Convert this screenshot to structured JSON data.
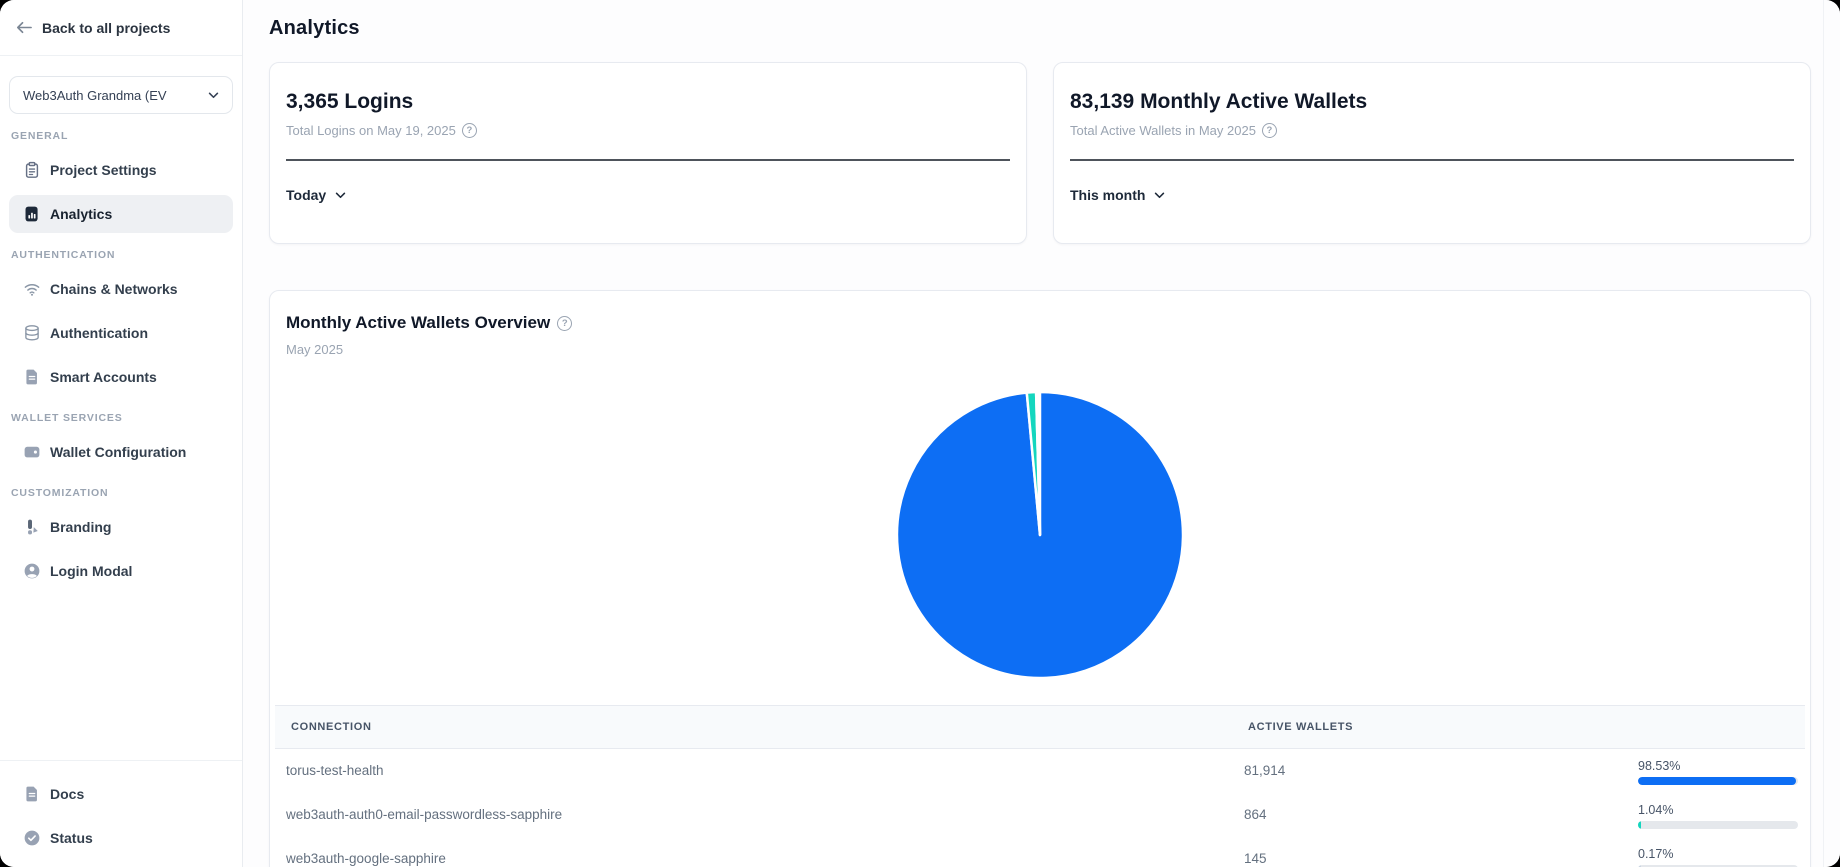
{
  "colors": {
    "accent_blue": "#0D6EF4",
    "accent_teal": "#14D6BE",
    "active_nav_bg": "#EEF0F3"
  },
  "sidebar": {
    "back_link": "Back to all projects",
    "project_selector": {
      "value": "Web3Auth Grandma (EV"
    },
    "sections": [
      {
        "label": "GENERAL",
        "items": [
          {
            "label": "Project Settings",
            "icon": "clipboard-icon",
            "active": false
          },
          {
            "label": "Analytics",
            "icon": "analytics-chart-icon",
            "active": true
          }
        ]
      },
      {
        "label": "AUTHENTICATION",
        "items": [
          {
            "label": "Chains & Networks",
            "icon": "network-icon",
            "active": false
          },
          {
            "label": "Authentication",
            "icon": "database-icon",
            "active": false
          },
          {
            "label": "Smart Accounts",
            "icon": "file-icon",
            "active": false
          }
        ]
      },
      {
        "label": "WALLET SERVICES",
        "items": [
          {
            "label": "Wallet Configuration",
            "icon": "wallet-icon",
            "active": false
          }
        ]
      },
      {
        "label": "CUSTOMIZATION",
        "items": [
          {
            "label": "Branding",
            "icon": "brush-icon",
            "active": false
          },
          {
            "label": "Login Modal",
            "icon": "user-icon",
            "active": false
          }
        ]
      }
    ],
    "footer_items": [
      {
        "label": "Docs",
        "icon": "docs-icon"
      },
      {
        "label": "Status",
        "icon": "status-check-icon"
      }
    ]
  },
  "main": {
    "title": "Analytics",
    "stat_cards": [
      {
        "value_title": "3,365 Logins",
        "subtitle": "Total Logins on May 19, 2025",
        "range_selector": "Today"
      },
      {
        "value_title": "83,139 Monthly Active Wallets",
        "subtitle": "Total Active Wallets in May 2025",
        "range_selector": "This month"
      }
    ],
    "overview_card": {
      "title": "Monthly Active Wallets Overview",
      "subtitle": "May 2025"
    }
  },
  "chart_data": {
    "type": "pie",
    "title": "Monthly Active Wallets Overview",
    "subtitle": "May 2025",
    "total": 83139,
    "legend_position": "none",
    "slices": [
      {
        "label": "torus-test-health",
        "value": 81914,
        "percent": "98.53%",
        "color": "#0D6EF4"
      },
      {
        "label": "web3auth-auth0-email-passwordless-sapphire",
        "value": 864,
        "percent": "1.04%",
        "color": "#14D6BE"
      },
      {
        "label": "web3auth-google-sapphire",
        "value": 145,
        "percent": "0.17%",
        "color": "#FFFFFF"
      }
    ],
    "table": {
      "columns": [
        "CONNECTION",
        "ACTIVE WALLETS",
        ""
      ],
      "rows": [
        {
          "connection": "torus-test-health",
          "active_wallets": "81,914",
          "percent": "98.53%",
          "percent_value": 98.53,
          "bar_color": "#0D6EF4"
        },
        {
          "connection": "web3auth-auth0-email-passwordless-sapphire",
          "active_wallets": "864",
          "percent": "1.04%",
          "percent_value": 1.04,
          "bar_color": "#14D6BE"
        },
        {
          "connection": "web3auth-google-sapphire",
          "active_wallets": "145",
          "percent": "0.17%",
          "percent_value": 0.17,
          "bar_color": "#CBD5E1"
        }
      ]
    }
  }
}
